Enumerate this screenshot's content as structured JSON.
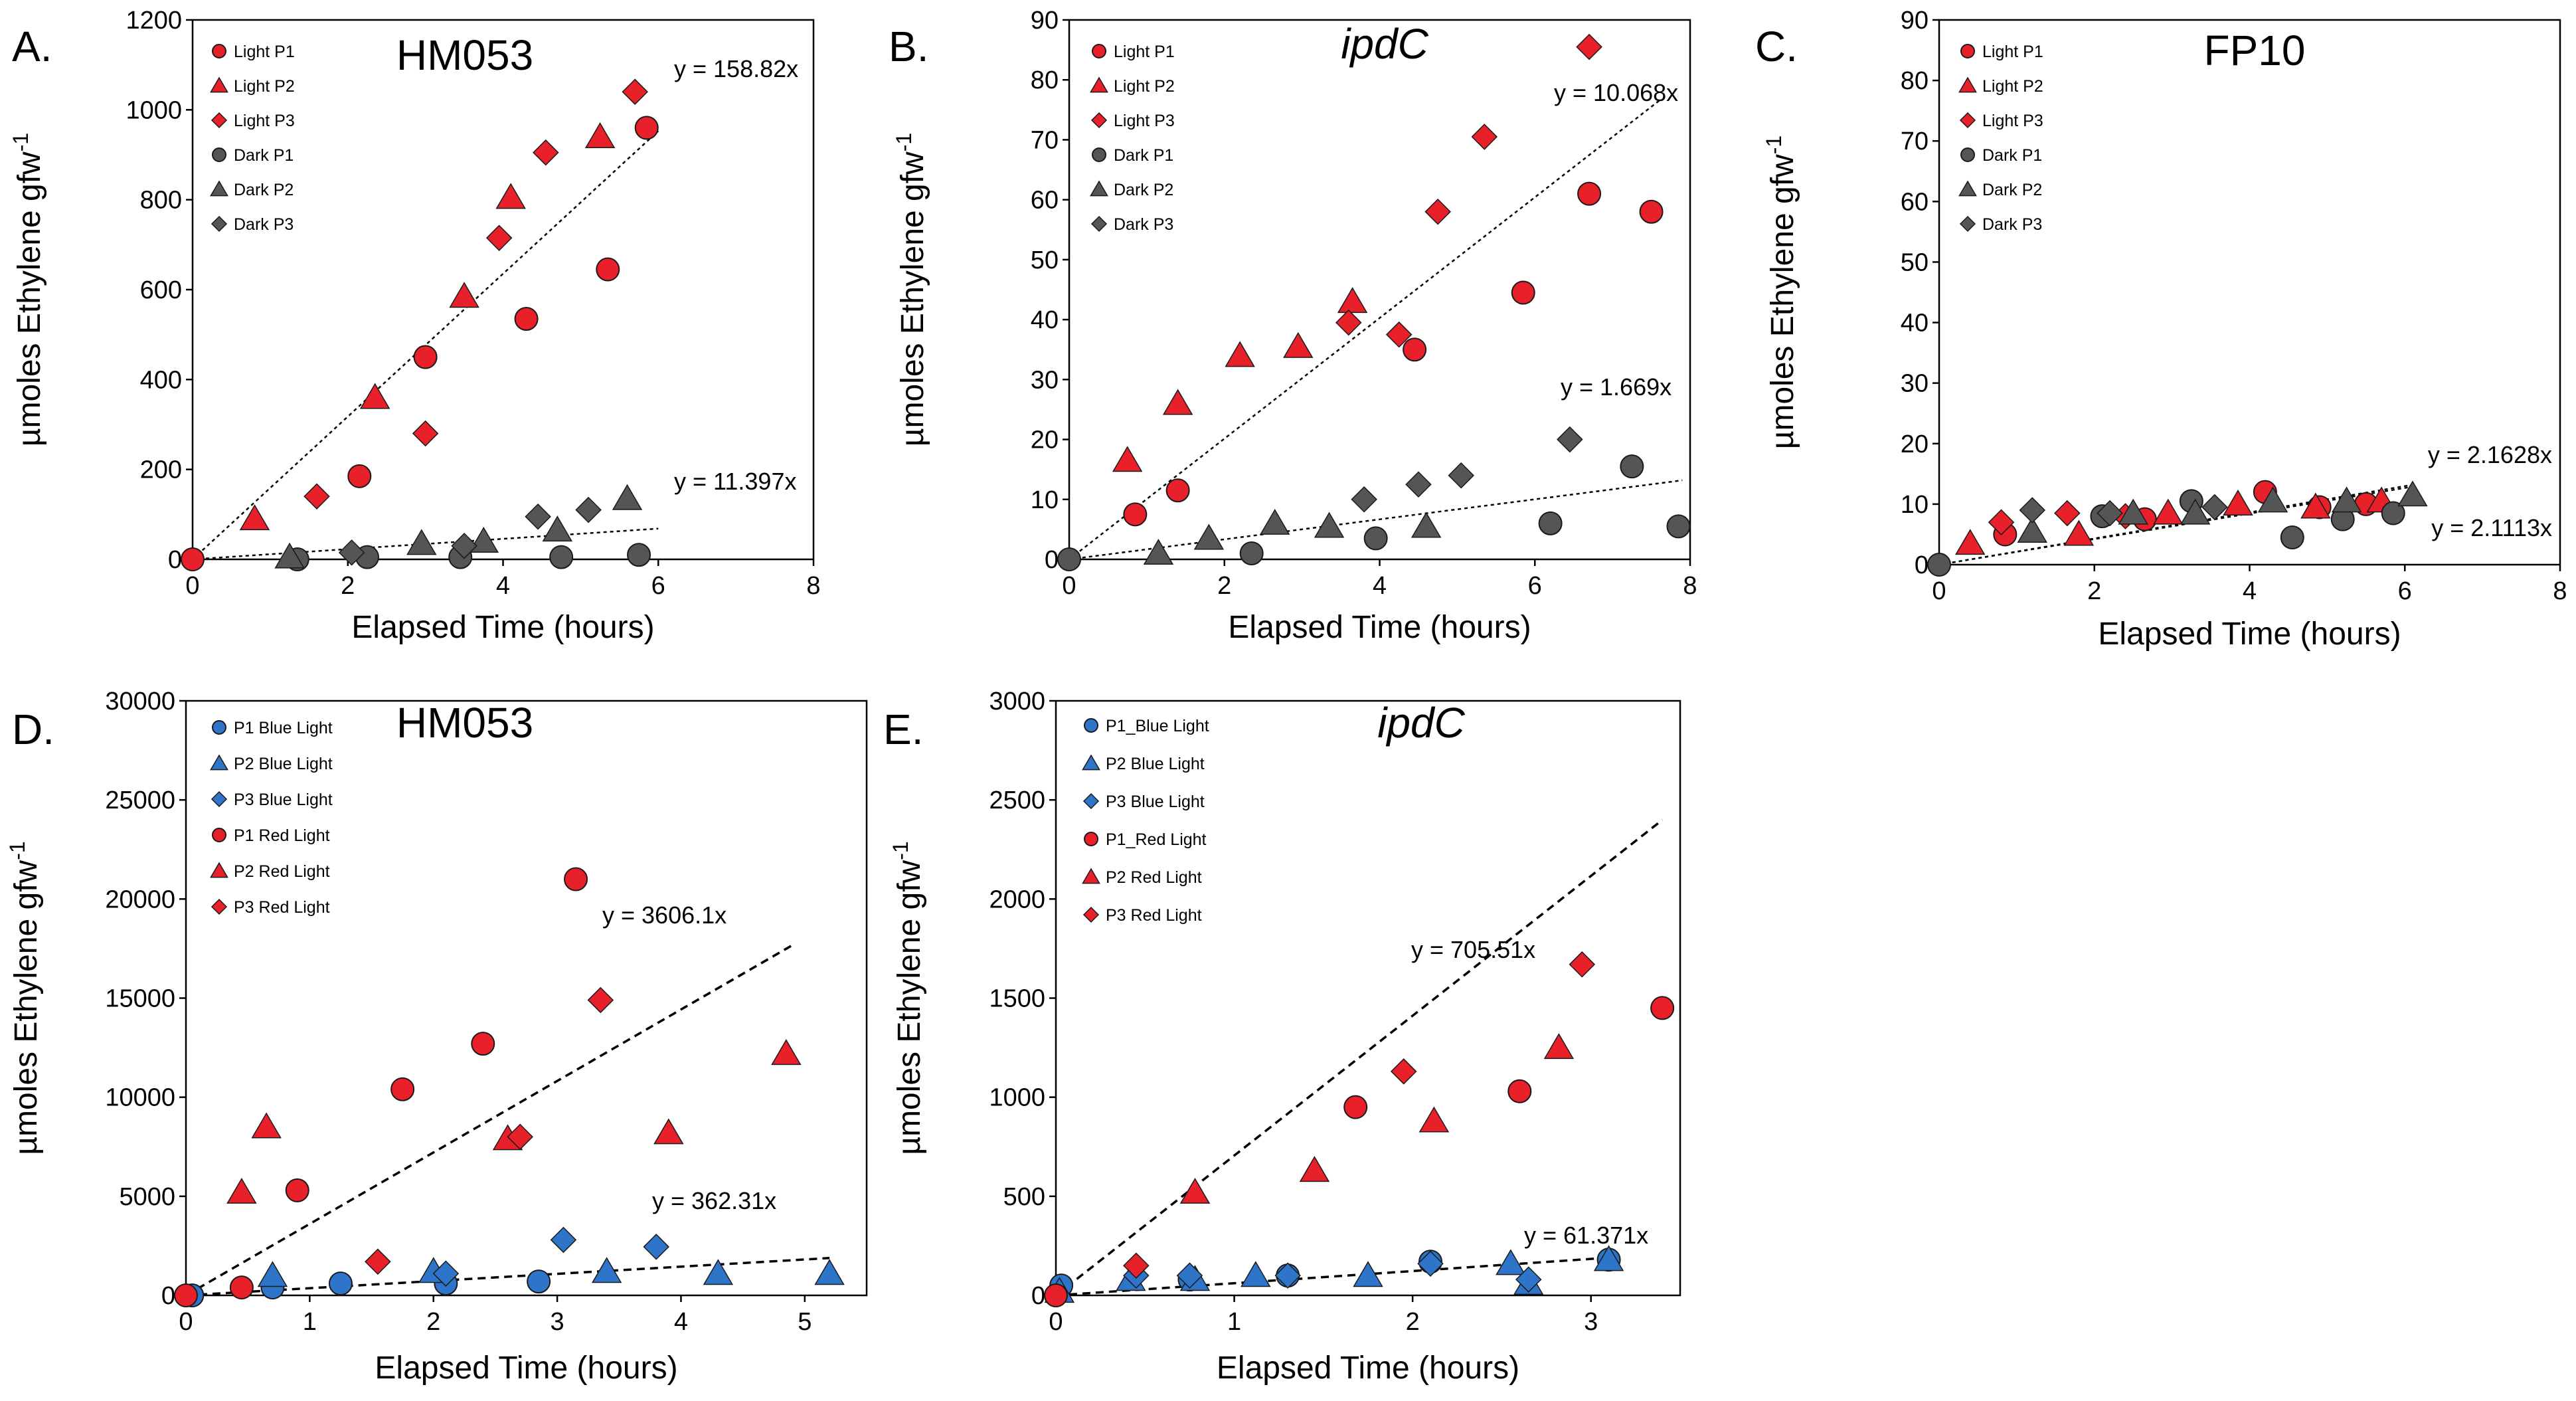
{
  "chart_data": [
    {
      "panel": "A.",
      "title": "HM053",
      "title_italic": false,
      "type": "scatter",
      "xlabel": "Elapsed Time (hours)",
      "ylabel": "µmoles Ethylene gfw",
      "ylabel_sup": "-1",
      "xlim": [
        0,
        8
      ],
      "ylim": [
        0,
        1200
      ],
      "xticks": [
        "0",
        "2",
        "4",
        "6",
        "8"
      ],
      "yticks": [
        "0",
        "200",
        "400",
        "600",
        "800",
        "1000",
        "1200"
      ],
      "series": [
        {
          "name": "Light P1",
          "color": "#e8202a",
          "marker": "circle",
          "x": [
            0,
            2.15,
            3.0,
            4.3,
            5.35,
            5.85
          ],
          "y": [
            0,
            185,
            450,
            535,
            645,
            960
          ]
        },
        {
          "name": "Light P2",
          "color": "#e8202a",
          "marker": "triangle",
          "x": [
            0.8,
            2.35,
            3.5,
            4.1,
            5.25
          ],
          "y": [
            90,
            360,
            585,
            805,
            940
          ]
        },
        {
          "name": "Light P3",
          "color": "#e8202a",
          "marker": "diamond",
          "x": [
            1.6,
            3.0,
            3.95,
            4.55,
            5.7
          ],
          "y": [
            140,
            280,
            715,
            905,
            1040
          ]
        },
        {
          "name": "Dark P1",
          "color": "#555555",
          "marker": "circle",
          "x": [
            1.35,
            2.25,
            3.45,
            4.75,
            5.75
          ],
          "y": [
            0,
            5,
            5,
            5,
            10
          ]
        },
        {
          "name": "Dark P2",
          "color": "#555555",
          "marker": "triangle",
          "x": [
            1.25,
            2.95,
            3.75,
            4.7,
            5.6
          ],
          "y": [
            5,
            35,
            40,
            65,
            135
          ]
        },
        {
          "name": "Dark P3",
          "color": "#555555",
          "marker": "diamond",
          "x": [
            2.05,
            3.5,
            4.45,
            5.1
          ],
          "y": [
            15,
            30,
            95,
            110
          ]
        }
      ],
      "trendlines": [
        {
          "label": "y = 158.82x",
          "slope": 158.82,
          "x_end": 6.0
        },
        {
          "label": "y = 11.397x",
          "slope": 11.397,
          "x_end": 6.0
        }
      ]
    },
    {
      "panel": "B.",
      "title": "ipdC",
      "title_italic": true,
      "type": "scatter",
      "xlabel": "Elapsed Time (hours)",
      "ylabel": "µmoles Ethylene gfw",
      "ylabel_sup": "-1",
      "xlim": [
        0,
        8
      ],
      "ylim": [
        0,
        90
      ],
      "xticks": [
        "0",
        "2",
        "4",
        "6",
        "8"
      ],
      "yticks": [
        "0",
        "10",
        "20",
        "30",
        "40",
        "50",
        "60",
        "70",
        "80",
        "90"
      ],
      "series": [
        {
          "name": "Light P1",
          "color": "#e8202a",
          "marker": "circle",
          "x": [
            0.85,
            1.4,
            4.45,
            5.85,
            6.7,
            7.5
          ],
          "y": [
            7.5,
            11.5,
            35,
            44.5,
            61,
            58
          ]
        },
        {
          "name": "Light P2",
          "color": "#e8202a",
          "marker": "triangle",
          "x": [
            0.75,
            1.4,
            2.2,
            2.95,
            3.65
          ],
          "y": [
            16.5,
            26,
            34,
            35.5,
            43
          ]
        },
        {
          "name": "Light P3",
          "color": "#e8202a",
          "marker": "diamond",
          "x": [
            3.6,
            4.25,
            4.75,
            5.35,
            6.7
          ],
          "y": [
            39.5,
            37.5,
            58,
            70.5,
            85.5
          ]
        },
        {
          "name": "Dark P1",
          "color": "#555555",
          "marker": "circle",
          "x": [
            0,
            2.35,
            3.95,
            6.2,
            7.25,
            7.85
          ],
          "y": [
            0,
            1,
            3.5,
            6,
            15.5,
            5.5
          ]
        },
        {
          "name": "Dark P2",
          "color": "#555555",
          "marker": "triangle",
          "x": [
            1.15,
            1.8,
            2.65,
            3.35,
            4.6
          ],
          "y": [
            1,
            3.5,
            6,
            5.5,
            5.5
          ]
        },
        {
          "name": "Dark P3",
          "color": "#555555",
          "marker": "diamond",
          "x": [
            3.8,
            4.5,
            5.05,
            6.45
          ],
          "y": [
            10,
            12.5,
            14,
            20
          ]
        }
      ],
      "trendlines": [
        {
          "label": "y = 10.068x",
          "slope": 10.068,
          "x_end": 7.6
        },
        {
          "label": "y = 1.669x",
          "slope": 1.669,
          "x_end": 7.9
        }
      ]
    },
    {
      "panel": "C.",
      "title": "FP10",
      "title_italic": false,
      "type": "scatter",
      "xlabel": "Elapsed Time (hours)",
      "ylabel": "µmoles Ethylene gfw",
      "ylabel_sup": "-1",
      "xlim": [
        0,
        8
      ],
      "ylim": [
        0,
        90
      ],
      "xticks": [
        "0",
        "2",
        "4",
        "6",
        "8"
      ],
      "yticks": [
        "0",
        "10",
        "20",
        "30",
        "40",
        "50",
        "60",
        "70",
        "80",
        "90"
      ],
      "series": [
        {
          "name": "Light P1",
          "color": "#e8202a",
          "marker": "circle",
          "x": [
            0.85,
            2.65,
            4.2,
            4.9,
            5.5
          ],
          "y": [
            5,
            7.5,
            12,
            9.5,
            10
          ]
        },
        {
          "name": "Light P2",
          "color": "#e8202a",
          "marker": "triangle",
          "x": [
            0.4,
            1.8,
            2.95,
            3.85,
            4.85,
            5.7
          ],
          "y": [
            3.5,
            5,
            8.5,
            10,
            9.5,
            10.5
          ]
        },
        {
          "name": "Light P3",
          "color": "#e8202a",
          "marker": "diamond",
          "x": [
            0.8,
            1.65,
            2.4
          ],
          "y": [
            7,
            8.5,
            8
          ]
        },
        {
          "name": "Dark P1",
          "color": "#555555",
          "marker": "circle",
          "x": [
            0,
            2.1,
            3.25,
            4.55,
            5.2,
            5.85
          ],
          "y": [
            0,
            8,
            10.5,
            4.5,
            7.5,
            8.5
          ]
        },
        {
          "name": "Dark P2",
          "color": "#555555",
          "marker": "triangle",
          "x": [
            1.2,
            2.5,
            3.3,
            4.3,
            5.25,
            6.1
          ],
          "y": [
            5.5,
            8.5,
            8.5,
            10.5,
            10.5,
            11.5
          ]
        },
        {
          "name": "Dark P3",
          "color": "#555555",
          "marker": "diamond",
          "x": [
            1.2,
            2.2,
            3.55
          ],
          "y": [
            9,
            8.5,
            9.5
          ]
        }
      ],
      "trendlines": [
        {
          "label": "y = 2.1628x",
          "slope": 2.1628,
          "x_end": 6.1
        },
        {
          "label": "y = 2.1113x",
          "slope": 2.1113,
          "x_end": 6.1
        }
      ]
    },
    {
      "panel": "D.",
      "title": "HM053",
      "title_italic": false,
      "type": "scatter",
      "xlabel": "Elapsed Time (hours)",
      "ylabel": "µmoles Ethylene gfw",
      "ylabel_sup": "-1",
      "xlim": [
        0,
        5.5
      ],
      "ylim": [
        0,
        30000
      ],
      "xticks": [
        "0",
        "1",
        "2",
        "3",
        "4",
        "5"
      ],
      "yticks": [
        "0",
        "5000",
        "10000",
        "15000",
        "20000",
        "25000",
        "30000"
      ],
      "series": [
        {
          "name": "P1 Blue Light",
          "color": "#2e75c9",
          "marker": "circle",
          "x": [
            0.05,
            0.7,
            1.25,
            2.1,
            2.85
          ],
          "y": [
            0,
            400,
            600,
            600,
            700
          ]
        },
        {
          "name": "P2 Blue Light",
          "color": "#2e75c9",
          "marker": "triangle",
          "x": [
            0.7,
            2.0,
            3.4,
            4.3,
            5.2
          ],
          "y": [
            1000,
            1200,
            1200,
            1100,
            1100
          ]
        },
        {
          "name": "P3 Blue Light",
          "color": "#2e75c9",
          "marker": "diamond",
          "x": [
            2.1,
            3.05,
            3.8
          ],
          "y": [
            1100,
            2800,
            2450
          ]
        },
        {
          "name": "P1 Red Light",
          "color": "#e8202a",
          "marker": "circle",
          "x": [
            0,
            0.45,
            0.9,
            1.75,
            2.4,
            3.15
          ],
          "y": [
            0,
            400,
            5300,
            10400,
            12700,
            21000
          ]
        },
        {
          "name": "P2 Red Light",
          "color": "#e8202a",
          "marker": "triangle",
          "x": [
            0.45,
            0.65,
            2.6,
            3.9,
            4.85
          ],
          "y": [
            5200,
            8500,
            7900,
            8200,
            12200
          ]
        },
        {
          "name": "P3 Red Light",
          "color": "#e8202a",
          "marker": "diamond",
          "x": [
            1.55,
            2.7,
            3.35
          ],
          "y": [
            1700,
            8000,
            14900
          ]
        }
      ],
      "trendlines": [
        {
          "label": "y = 3606.1x",
          "slope": 3606.1,
          "x_end": 4.9
        },
        {
          "label": "y = 362.31x",
          "slope": 362.31,
          "x_end": 5.2
        }
      ]
    },
    {
      "panel": "E.",
      "title": "ipdC",
      "title_italic": true,
      "type": "scatter",
      "xlabel": "Elapsed Time (hours)",
      "ylabel": "µmoles Ethylene gfw",
      "ylabel_sup": "-1",
      "xlim": [
        0,
        3.5
      ],
      "ylim": [
        0,
        3000
      ],
      "xticks": [
        "0",
        "1",
        "2",
        "3"
      ],
      "yticks": [
        "0",
        "500",
        "1000",
        "1500",
        "2000",
        "2500",
        "3000"
      ],
      "series": [
        {
          "name": "P1_Blue Light",
          "color": "#2e75c9",
          "marker": "circle",
          "x": [
            0.03,
            0.75,
            1.3,
            2.1,
            3.1
          ],
          "y": [
            50,
            80,
            100,
            170,
            180
          ]
        },
        {
          "name": "P2 Blue Light",
          "color": "#2e75c9",
          "marker": "triangle",
          "x": [
            0.02,
            0.42,
            0.78,
            1.12,
            1.75,
            2.55,
            2.65,
            3.1
          ],
          "y": [
            20,
            80,
            80,
            100,
            100,
            160,
            60,
            180
          ]
        },
        {
          "name": "P3 Blue Light",
          "color": "#2e75c9",
          "marker": "diamond",
          "x": [
            0.45,
            0.75,
            1.3,
            2.1,
            2.65
          ],
          "y": [
            100,
            100,
            100,
            160,
            80
          ]
        },
        {
          "name": "P1_Red Light",
          "color": "#e8202a",
          "marker": "circle",
          "x": [
            0,
            1.68,
            2.6,
            3.4
          ],
          "y": [
            0,
            950,
            1030,
            1450
          ]
        },
        {
          "name": "P2 Red Light",
          "color": "#e8202a",
          "marker": "triangle",
          "x": [
            0.78,
            1.45,
            2.12,
            2.82
          ],
          "y": [
            520,
            630,
            880,
            1250
          ]
        },
        {
          "name": "P3 Red Light",
          "color": "#e8202a",
          "marker": "diamond",
          "x": [
            0.45,
            1.95,
            2.95
          ],
          "y": [
            150,
            1130,
            1670
          ]
        }
      ],
      "trendlines": [
        {
          "label": "y = 705.51x",
          "slope": 705.51,
          "x_end": 3.4
        },
        {
          "label": "y = 61.371x",
          "slope": 61.371,
          "x_end": 3.1
        }
      ]
    }
  ]
}
